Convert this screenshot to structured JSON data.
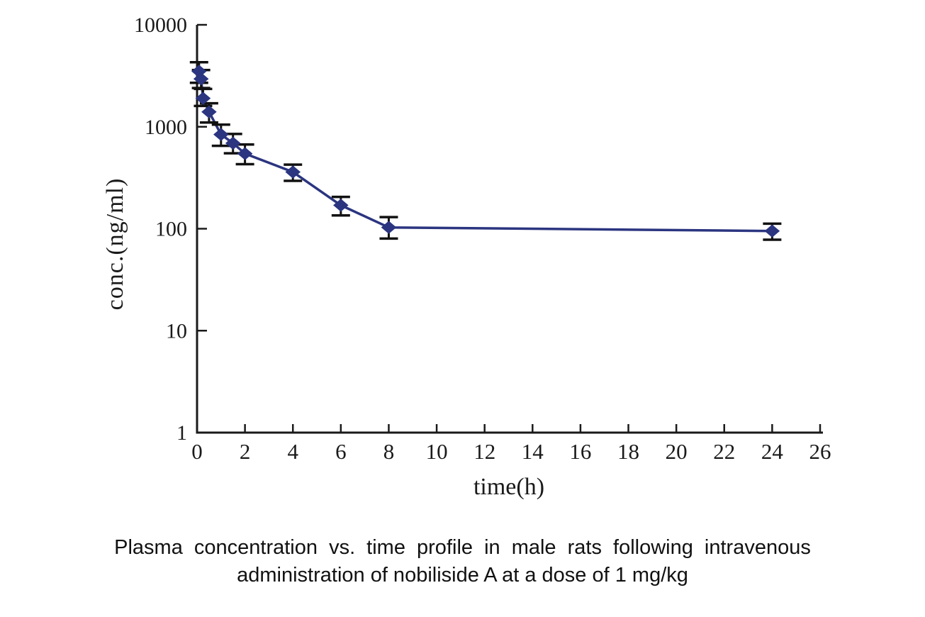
{
  "figure": {
    "background_color": "#ffffff",
    "axis_color": "#1a1a1a",
    "error_bar_color": "#111111"
  },
  "chart_data": {
    "type": "line",
    "title": "",
    "xlabel": "time(h)",
    "ylabel": "conc.(ng/ml)",
    "x_scale": "linear",
    "y_scale": "log",
    "xlim": [
      0,
      26
    ],
    "ylim": [
      1,
      10000
    ],
    "x_ticks": [
      0,
      2,
      4,
      6,
      8,
      10,
      12,
      14,
      16,
      18,
      20,
      22,
      24,
      26
    ],
    "y_ticks": [
      1,
      10,
      100,
      1000,
      10000
    ],
    "grid": false,
    "legend": "none",
    "series": [
      {
        "name": "plasma concentration of nobiliside A (1 mg/kg IV, male rats)",
        "marker": "diamond",
        "color": "#2b3580",
        "line_width": 3.5,
        "points": [
          {
            "t": 0.083,
            "conc": 3500,
            "err_low": 2700,
            "err_high": 4300
          },
          {
            "t": 0.167,
            "conc": 2950,
            "err_low": 2400,
            "err_high": 3600
          },
          {
            "t": 0.25,
            "conc": 1900,
            "err_low": 1600,
            "err_high": 2350
          },
          {
            "t": 0.5,
            "conc": 1400,
            "err_low": 1100,
            "err_high": 1700
          },
          {
            "t": 1,
            "conc": 840,
            "err_low": 650,
            "err_high": 1050
          },
          {
            "t": 1.5,
            "conc": 690,
            "err_low": 550,
            "err_high": 850
          },
          {
            "t": 2,
            "conc": 545,
            "err_low": 430,
            "err_high": 670
          },
          {
            "t": 4,
            "conc": 360,
            "err_low": 295,
            "err_high": 425
          },
          {
            "t": 6,
            "conc": 170,
            "err_low": 135,
            "err_high": 205
          },
          {
            "t": 8,
            "conc": 103,
            "err_low": 80,
            "err_high": 130
          },
          {
            "t": 24,
            "conc": 95,
            "err_low": 78,
            "err_high": 112
          }
        ]
      }
    ]
  },
  "caption": {
    "line1": "Plasma concentration vs. time profile in male rats following intravenous",
    "line2": "administration of nobiliside A at a dose of 1 mg/kg"
  }
}
